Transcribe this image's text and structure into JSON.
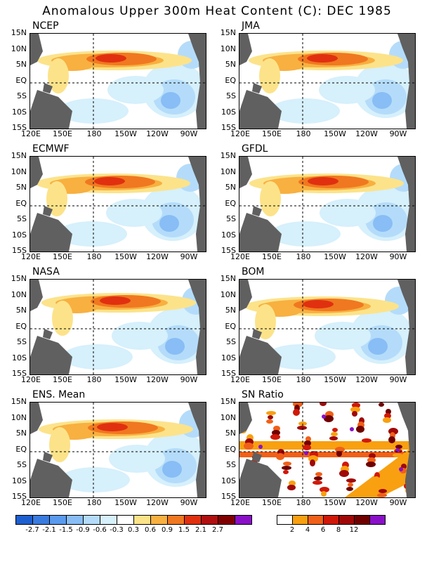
{
  "title": "Anomalous Upper 300m Heat Content (C): DEC 1985",
  "lat_labels": [
    "15N",
    "10N",
    "5N",
    "EQ",
    "5S",
    "10S",
    "15S"
  ],
  "lon_labels": [
    "120E",
    "150E",
    "180",
    "150W",
    "120W",
    "90W"
  ],
  "panels": [
    {
      "name": "NCEP",
      "type": "anomaly"
    },
    {
      "name": "JMA",
      "type": "anomaly"
    },
    {
      "name": "ECMWF",
      "type": "anomaly"
    },
    {
      "name": "GFDL",
      "type": "anomaly"
    },
    {
      "name": "NASA",
      "type": "anomaly"
    },
    {
      "name": "BOM",
      "type": "anomaly"
    },
    {
      "name": "ENS. Mean",
      "type": "anomaly"
    },
    {
      "name": "SN Ratio",
      "type": "ratio"
    }
  ],
  "anomaly_scale": {
    "labels": [
      "-2.7",
      "-2.1",
      "-1.5",
      "-0.9",
      "-0.6",
      "-0.3",
      "0.3",
      "0.6",
      "0.9",
      "1.5",
      "2.1",
      "2.7"
    ],
    "colors": [
      "#1e5fd0",
      "#3a7be0",
      "#5a9bf0",
      "#88bdf5",
      "#b4dcfa",
      "#d6f0fc",
      "#ffffff",
      "#fce38a",
      "#f8b040",
      "#f07820",
      "#e03010",
      "#b01010",
      "#800000",
      "#8a10c8"
    ]
  },
  "ratio_scale": {
    "labels": [
      "2",
      "4",
      "6",
      "8",
      "12"
    ],
    "colors": [
      "#ffffff",
      "#f8a010",
      "#f06018",
      "#d01808",
      "#a00808",
      "#700000",
      "#8a10c8"
    ]
  },
  "land_color": "#606060"
}
